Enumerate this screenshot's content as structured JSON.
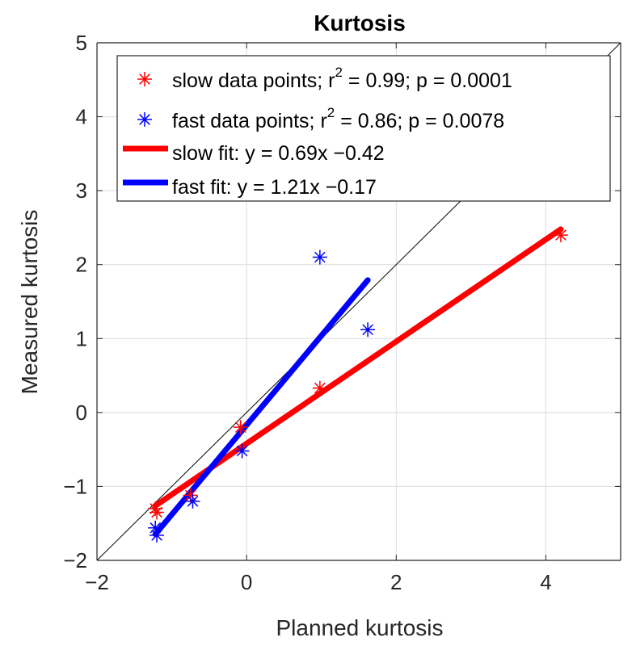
{
  "chart_data": {
    "type": "scatter",
    "title": "Kurtosis",
    "xlabel": "Planned kurtosis",
    "ylabel": "Measured kurtosis",
    "xlim": [
      -2,
      5
    ],
    "ylim": [
      -2,
      5
    ],
    "xticks": [
      -2,
      0,
      2,
      4
    ],
    "yticks": [
      -2,
      -1,
      0,
      1,
      2,
      3,
      4,
      5
    ],
    "xtick_labels": [
      "−2",
      "0",
      "2",
      "4"
    ],
    "ytick_labels": [
      "−2",
      "−1",
      "0",
      "1",
      "2",
      "3",
      "4",
      "5"
    ],
    "grid": true,
    "identity_line": true,
    "legend_position": "top",
    "colors": {
      "slow": "#ff0000",
      "fast": "#0000ff",
      "identity": "#000000",
      "grid": "#dcdcdc"
    },
    "series": [
      {
        "name": "slow",
        "kind": "points",
        "marker": "asterisk",
        "color": "#ff0000",
        "points": [
          [
            -1.22,
            -1.3
          ],
          [
            -1.2,
            -1.35
          ],
          [
            -0.75,
            -1.12
          ],
          [
            -0.08,
            -0.2
          ],
          [
            0.98,
            0.33
          ],
          [
            4.2,
            2.4
          ]
        ]
      },
      {
        "name": "fast",
        "kind": "points",
        "marker": "asterisk",
        "color": "#0000ff",
        "points": [
          [
            -1.22,
            -1.56
          ],
          [
            -1.2,
            -1.66
          ],
          [
            -0.72,
            -1.2
          ],
          [
            -0.06,
            -0.52
          ],
          [
            0.98,
            2.1
          ],
          [
            1.62,
            1.12
          ]
        ]
      },
      {
        "name": "slow fit",
        "kind": "line",
        "color": "#ff0000",
        "slope": 0.69,
        "intercept": -0.42,
        "x_range": [
          -1.22,
          4.2
        ]
      },
      {
        "name": "fast fit",
        "kind": "line",
        "color": "#0000ff",
        "slope": 1.21,
        "intercept": -0.17,
        "x_range": [
          -1.22,
          1.62
        ]
      }
    ],
    "legend": [
      {
        "series": "slow",
        "symbol": "asterisk",
        "prefix": "slow data points; r",
        "sup": "2",
        "suffix": " = 0.99; p = 0.0001"
      },
      {
        "series": "fast",
        "symbol": "asterisk",
        "prefix": "fast data points; r",
        "sup": "2",
        "suffix": " = 0.86; p = 0.0078"
      },
      {
        "series": "slow fit",
        "symbol": "line",
        "prefix": "slow fit: y = 0.69x −0.42",
        "sup": "",
        "suffix": ""
      },
      {
        "series": "fast fit",
        "symbol": "line",
        "prefix": "fast fit: y = 1.21x −0.17",
        "sup": "",
        "suffix": ""
      }
    ]
  }
}
